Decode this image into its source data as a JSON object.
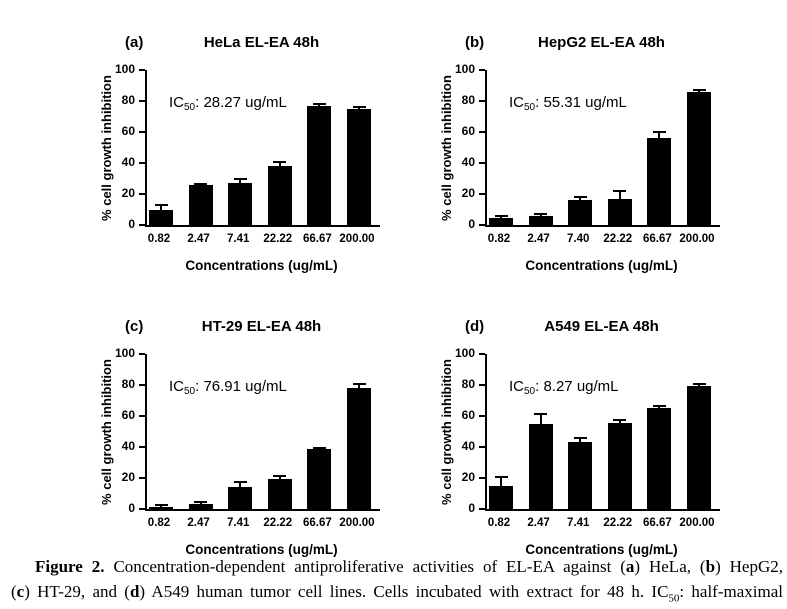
{
  "figure": {
    "background_color": "#ffffff",
    "bar_color": "#000000",
    "axis_color": "#000000",
    "text_color": "#000000",
    "caption_lines": [
      [
        {
          "text": "Figure 2.",
          "bold": true
        },
        {
          "text": " Concentration-dependent antiproliferative activities of EL-EA against ("
        },
        {
          "text": "a",
          "bold": true
        },
        {
          "text": ") HeLa, ("
        },
        {
          "text": "b",
          "bold": true
        },
        {
          "text": ") HepG2,"
        }
      ],
      [
        {
          "text": "("
        },
        {
          "text": "c",
          "bold": true
        },
        {
          "text": ") HT-29, and ("
        },
        {
          "text": "d",
          "bold": true
        },
        {
          "text": ") A549 human tumor cell lines. Cells incubated with extract for 48 h. IC"
        },
        {
          "text": "50",
          "sub": true
        },
        {
          "text": ": half-maximal"
        }
      ]
    ]
  },
  "chart_data": [
    {
      "type": "bar",
      "panel_label": "(a)",
      "title": "HeLa EL-EA 48h",
      "ic50": {
        "prefix": "IC",
        "sub": "50",
        "rest": ": 28.27 ug/mL"
      },
      "xlabel": "Concentrations (ug/mL)",
      "ylabel": "% cell growth inhibition",
      "ylim": [
        0,
        100
      ],
      "yticks": [
        0,
        20,
        40,
        60,
        80,
        100
      ],
      "categories": [
        "0.82",
        "2.47",
        "7.41",
        "22.22",
        "66.67",
        "200.00"
      ],
      "values": [
        10,
        25.5,
        27,
        38,
        77,
        75
      ],
      "errors": [
        3,
        1,
        3,
        2.5,
        1,
        1
      ]
    },
    {
      "type": "bar",
      "panel_label": "(b)",
      "title": "HepG2 EL-EA 48h",
      "ic50": {
        "prefix": "IC",
        "sub": "50",
        "rest": ": 55.31 ug/mL"
      },
      "xlabel": "Concentrations (ug/mL)",
      "ylabel": "% cell growth inhibition",
      "ylim": [
        0,
        100
      ],
      "yticks": [
        0,
        20,
        40,
        60,
        80,
        100
      ],
      "categories": [
        "0.82",
        "2.47",
        "7.40",
        "22.22",
        "66.67",
        "200.00"
      ],
      "values": [
        4.5,
        5.5,
        16,
        17,
        56,
        86
      ],
      "errors": [
        1.5,
        1.5,
        2,
        5,
        4,
        1.2
      ]
    },
    {
      "type": "bar",
      "panel_label": "(c)",
      "title": "HT-29 EL-EA 48h",
      "ic50": {
        "prefix": "IC",
        "sub": "50",
        "rest": ": 76.91 ug/mL"
      },
      "xlabel": "Concentrations (ug/mL)",
      "ylabel": "% cell growth inhibition",
      "ylim": [
        0,
        100
      ],
      "yticks": [
        0,
        20,
        40,
        60,
        80,
        100
      ],
      "categories": [
        "0.82",
        "2.47",
        "7.41",
        "22.22",
        "66.67",
        "200.00"
      ],
      "values": [
        1.5,
        3,
        14.5,
        19.5,
        38.5,
        78
      ],
      "errors": [
        1,
        1.5,
        3,
        1.5,
        1,
        2.5
      ]
    },
    {
      "type": "bar",
      "panel_label": "(d)",
      "title": "A549 EL-EA 48h",
      "ic50": {
        "prefix": "IC",
        "sub": "50",
        "rest": ": 8.27 ug/mL"
      },
      "xlabel": "Concentrations (ug/mL)",
      "ylabel": "% cell growth inhibition",
      "ylim": [
        0,
        100
      ],
      "yticks": [
        0,
        20,
        40,
        60,
        80,
        100
      ],
      "categories": [
        "0.82",
        "2.47",
        "7.41",
        "22.22",
        "66.67",
        "200.00"
      ],
      "values": [
        15,
        55,
        43.5,
        55.5,
        65,
        79.5
      ],
      "errors": [
        5.5,
        6,
        2.5,
        2,
        1.3,
        1
      ]
    }
  ]
}
